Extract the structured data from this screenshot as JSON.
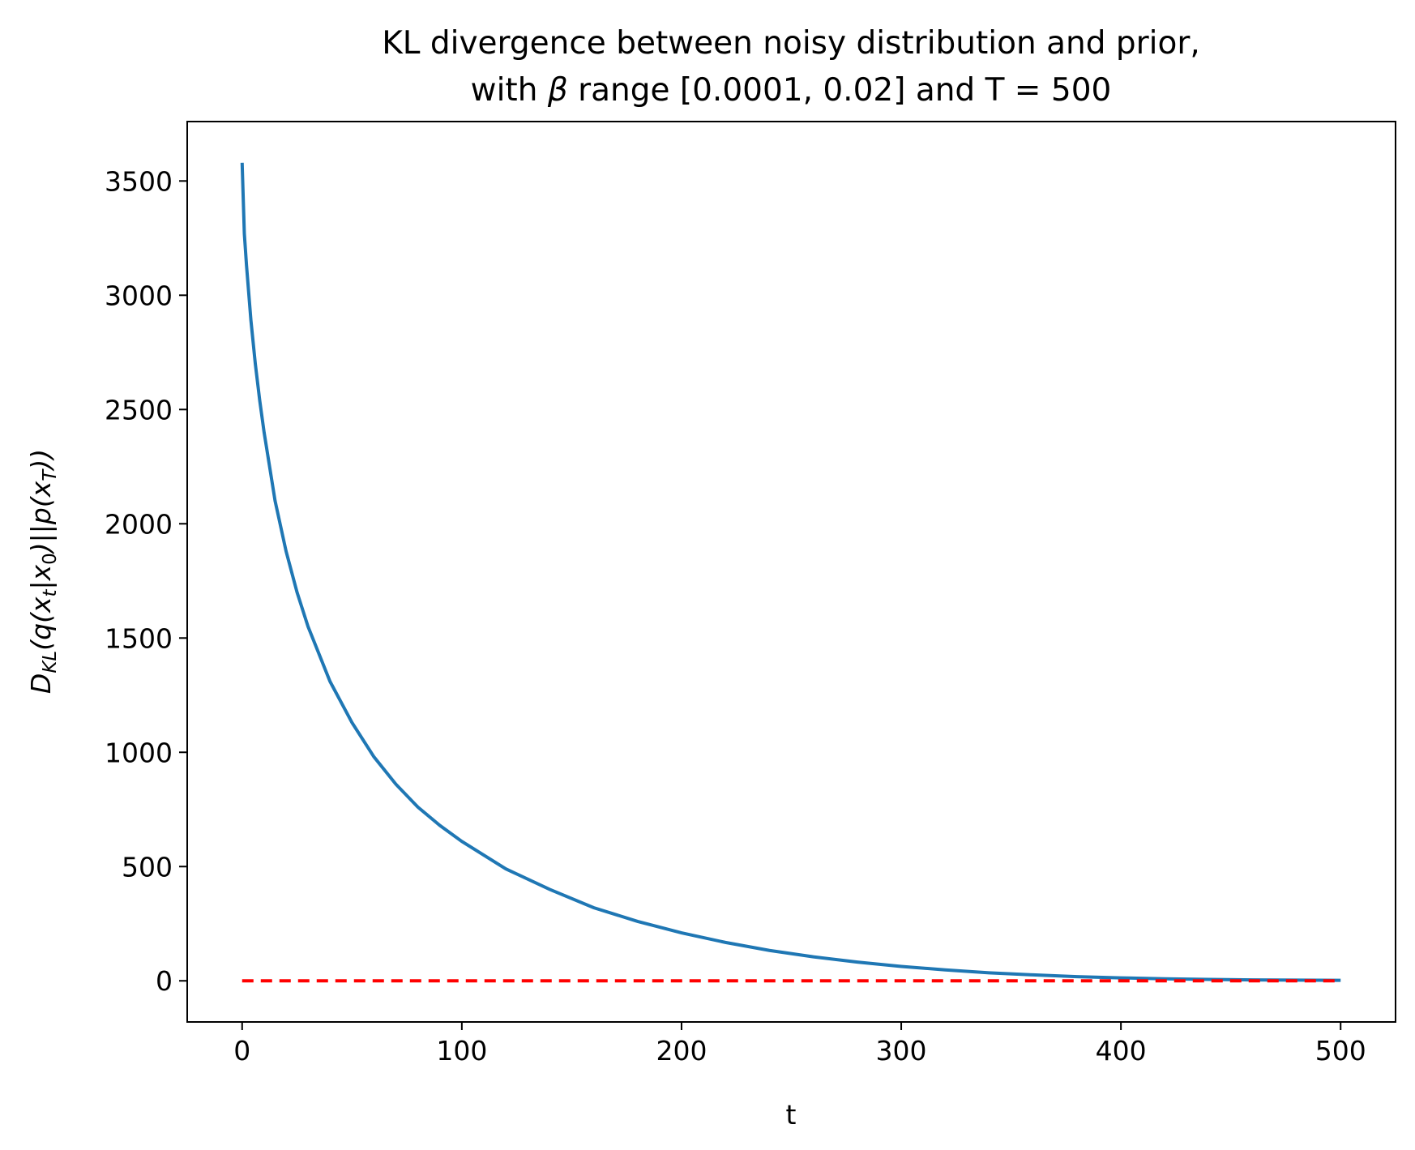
{
  "chart_data": {
    "type": "line",
    "title_line1": "KL divergence between noisy distribution and prior,",
    "title_line2": {
      "prefix": "with ",
      "symbol": "β",
      "suffix": " range [0.0001, 0.02] and T = 500"
    },
    "xlabel": "t",
    "ylabel": {
      "D": "D",
      "KL": "KL",
      "open": "(q(x",
      "t_sub": "t",
      "mid": "|x",
      "zero_sub": "0",
      "mid2": ")||p(x",
      "T_sub": "T",
      "close": "))"
    },
    "xlim": [
      -25,
      525
    ],
    "ylim": [
      -180,
      3760
    ],
    "x_ticks": [
      0,
      100,
      200,
      300,
      400,
      500
    ],
    "x_tick_labels": [
      "0",
      "100",
      "200",
      "300",
      "400",
      "500"
    ],
    "y_ticks": [
      0,
      500,
      1000,
      1500,
      2000,
      2500,
      3000,
      3500
    ],
    "y_tick_labels": [
      "0",
      "500",
      "1000",
      "1500",
      "2000",
      "2500",
      "3000",
      "3500"
    ],
    "grid": false,
    "series": [
      {
        "style": "solid",
        "color": "#1f77b4",
        "x": [
          0,
          1,
          2,
          4,
          6,
          8,
          10,
          15,
          20,
          25,
          30,
          40,
          50,
          60,
          70,
          80,
          90,
          100,
          120,
          140,
          160,
          180,
          200,
          220,
          240,
          260,
          280,
          300,
          320,
          340,
          360,
          380,
          400,
          420,
          440,
          460,
          480,
          500
        ],
        "y": [
          3580,
          3270,
          3130,
          2890,
          2700,
          2540,
          2400,
          2100,
          1880,
          1700,
          1550,
          1310,
          1130,
          980,
          860,
          760,
          680,
          610,
          490,
          400,
          320,
          260,
          210,
          168,
          133,
          105,
          82,
          63,
          48,
          35,
          26,
          18,
          13,
          9,
          6,
          4,
          3,
          2
        ]
      },
      {
        "style": "dashed",
        "color": "#ff0000",
        "x": [
          0,
          500
        ],
        "y": [
          0,
          0
        ]
      }
    ]
  }
}
